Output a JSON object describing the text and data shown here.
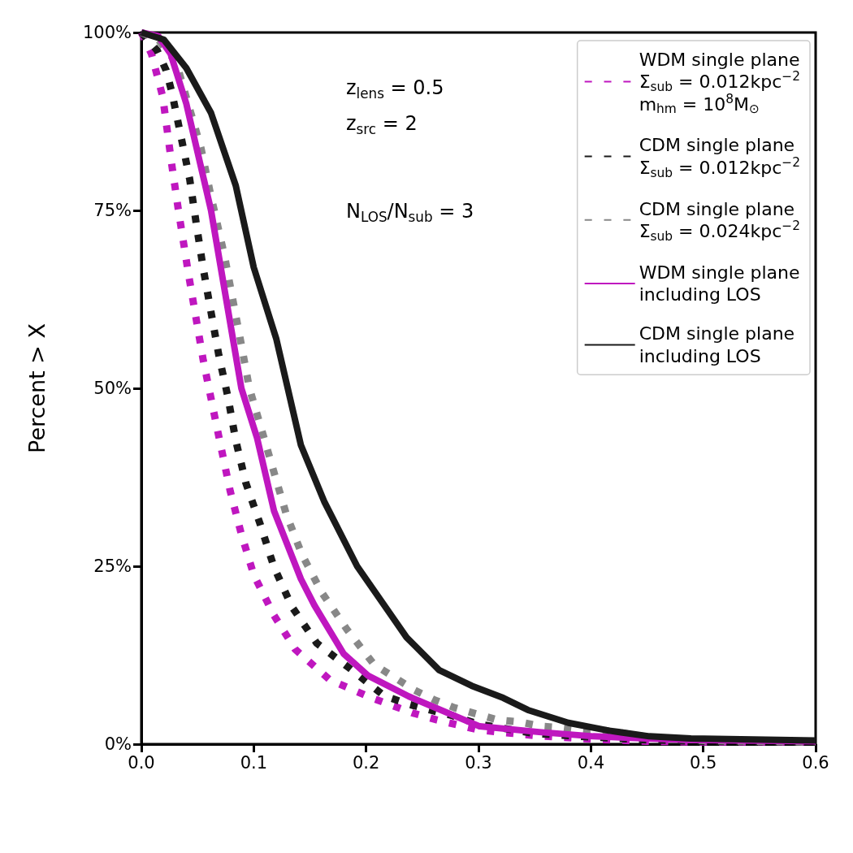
{
  "chart_data": {
    "type": "line",
    "ylabel": "Percent > X",
    "xlim": [
      0,
      0.6
    ],
    "xticks": [
      {
        "value": 0,
        "label": "0.0"
      },
      {
        "value": 0.1,
        "label": "0.1"
      },
      {
        "value": 0.2,
        "label": "0.2"
      },
      {
        "value": 0.3,
        "label": "0.3"
      },
      {
        "value": 0.4,
        "label": "0.4"
      },
      {
        "value": 0.5,
        "label": "0.5"
      },
      {
        "value": 0.6,
        "label": "0.6"
      }
    ],
    "ylim": [
      0,
      100
    ],
    "yticks": [
      {
        "value": 0,
        "label": "0%"
      },
      {
        "value": 25,
        "label": "25%"
      },
      {
        "value": 50,
        "label": "50%"
      },
      {
        "value": 75,
        "label": "75%"
      },
      {
        "value": 100,
        "label": "100%"
      }
    ],
    "grid": false,
    "legend": "top right",
    "marker": "none",
    "annotations": [
      "z$_{lens}$ = 0.5",
      "z$_{src}$ = 2",
      "N$_{LOS}$/N$_{sub}$ = 3"
    ],
    "series": [
      {
        "name": "WDM single plane\nΣ$_{sub}$ = 0.012kpc$^{−2}$\nm$_{hm}$ = 10$^{8}$M$_{⊙}$",
        "color": "#bf17bf",
        "line_style": "dotted",
        "x": [
          0,
          0.009,
          0.019,
          0.027,
          0.033,
          0.042,
          0.055,
          0.067,
          0.079,
          0.089,
          0.1,
          0.118,
          0.137,
          0.168,
          0.205,
          0.241,
          0.263,
          0.3,
          0.35,
          0.4,
          0.45,
          0.5,
          0.6
        ],
        "values": [
          100,
          97,
          91,
          81.5,
          75,
          66,
          54,
          44.7,
          35.6,
          29.5,
          23.8,
          18.1,
          13.3,
          9,
          6.5,
          4.4,
          3.4,
          2,
          1.2,
          0.7,
          0.4,
          0.3,
          0.3
        ]
      },
      {
        "name": "CDM single plane\nΣ$_{sub}$ = 0.012kpc$^{−2}$",
        "color": "#1a1a1a",
        "line_style": "dotted",
        "x": [
          0,
          0.014,
          0.022,
          0.027,
          0.035,
          0.043,
          0.049,
          0.055,
          0.062,
          0.069,
          0.077,
          0.084,
          0.093,
          0.106,
          0.118,
          0.134,
          0.156,
          0.185,
          0.216,
          0.238,
          0.257,
          0.277,
          0.3,
          0.35,
          0.4,
          0.45,
          0.5,
          0.6
        ],
        "values": [
          100,
          97.5,
          94.7,
          91.7,
          85.6,
          79.4,
          73,
          66.9,
          60.7,
          54.6,
          48.8,
          42.7,
          36.7,
          30.8,
          24.9,
          19.3,
          14.2,
          10.7,
          6.8,
          5.6,
          4.8,
          4,
          2.8,
          1.5,
          1,
          0.6,
          0.4,
          0.3
        ]
      },
      {
        "name": "CDM single plane\nΣ$_{sub}$ = 0.024kpc$^{−2}$",
        "color": "#888888",
        "line_style": "dotted",
        "x": [
          0,
          0.015,
          0.031,
          0.042,
          0.053,
          0.061,
          0.074,
          0.089,
          0.096,
          0.107,
          0.118,
          0.129,
          0.143,
          0.161,
          0.183,
          0.207,
          0.226,
          0.243,
          0.261,
          0.279,
          0.299,
          0.317,
          0.337,
          0.356,
          0.375,
          0.395,
          0.414,
          0.45,
          0.5,
          0.6
        ],
        "values": [
          100,
          99,
          95.8,
          89.8,
          83.8,
          77.7,
          68.6,
          56.1,
          50.1,
          44.2,
          38.2,
          32.3,
          26.6,
          21.2,
          16.1,
          11.2,
          9.3,
          7.6,
          6.2,
          5.1,
          4.2,
          3.4,
          3.1,
          2.5,
          2.3,
          1.9,
          1.9,
          1,
          0.5,
          0.3
        ]
      },
      {
        "name": "WDM single plane\nincluding LOS",
        "color": "#bf17bf",
        "line_style": "solid",
        "x": [
          0,
          0.015,
          0.026,
          0.04,
          0.062,
          0.089,
          0.103,
          0.118,
          0.142,
          0.154,
          0.18,
          0.202,
          0.238,
          0.301,
          0.354,
          0.402,
          0.45,
          0.487,
          0.6
        ],
        "values": [
          100,
          99.5,
          97,
          90,
          75,
          50,
          43,
          32.8,
          23.2,
          19.5,
          12.7,
          9.6,
          6.7,
          2.5,
          1.7,
          1.1,
          0.8,
          0.6,
          0.4
        ]
      },
      {
        "name": "CDM single plane\nincluding LOS",
        "color": "#1a1a1a",
        "line_style": "solid",
        "x": [
          0,
          0.02,
          0.03,
          0.04,
          0.062,
          0.084,
          0.1,
          0.12,
          0.142,
          0.163,
          0.192,
          0.236,
          0.265,
          0.294,
          0.322,
          0.344,
          0.38,
          0.416,
          0.452,
          0.489,
          0.6
        ],
        "values": [
          100,
          99,
          97,
          95,
          88.7,
          78.5,
          67,
          57,
          42,
          34,
          25,
          15,
          10.4,
          8.2,
          6.5,
          4.8,
          3,
          1.9,
          1.1,
          0.8,
          0.5
        ]
      }
    ]
  }
}
